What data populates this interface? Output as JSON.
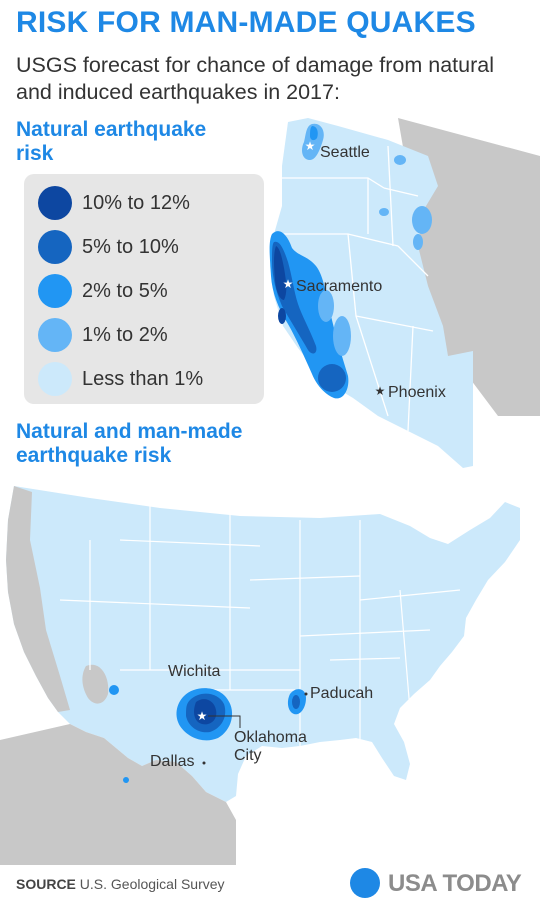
{
  "header": {
    "title": "RISK FOR MAN-MADE QUAKES",
    "subtitle": "USGS forecast for chance of damage from natural and induced earthquakes in 2017:"
  },
  "sections": {
    "natural": "Natural earthquake risk",
    "combined": "Natural and man-made earthquake risk"
  },
  "legend": {
    "items": [
      {
        "label": "10% to 12%",
        "color": "#0d47a1"
      },
      {
        "label": "5% to 10%",
        "color": "#1565c0"
      },
      {
        "label": "2% to 5%",
        "color": "#2196f3"
      },
      {
        "label": "1% to 2%",
        "color": "#64b5f6"
      },
      {
        "label": "Less than 1%",
        "color": "#cce9fb"
      }
    ]
  },
  "map_west": {
    "cities": [
      "Seattle",
      "Sacramento",
      "Phoenix"
    ]
  },
  "map_us": {
    "cities": [
      "Wichita",
      "Oklahoma City",
      "Dallas",
      "Paducah"
    ],
    "oklahoma_city_lines": [
      "Oklahoma",
      "City"
    ]
  },
  "colors": {
    "accent": "#1e88e5",
    "outside_region": "#c8c8c8",
    "low_risk": "#cce9fb",
    "state_border": "#ffffff"
  },
  "footer": {
    "source_label": "SOURCE",
    "source_text": "U.S. Geological Survey",
    "logo_text": "USA TODAY"
  }
}
